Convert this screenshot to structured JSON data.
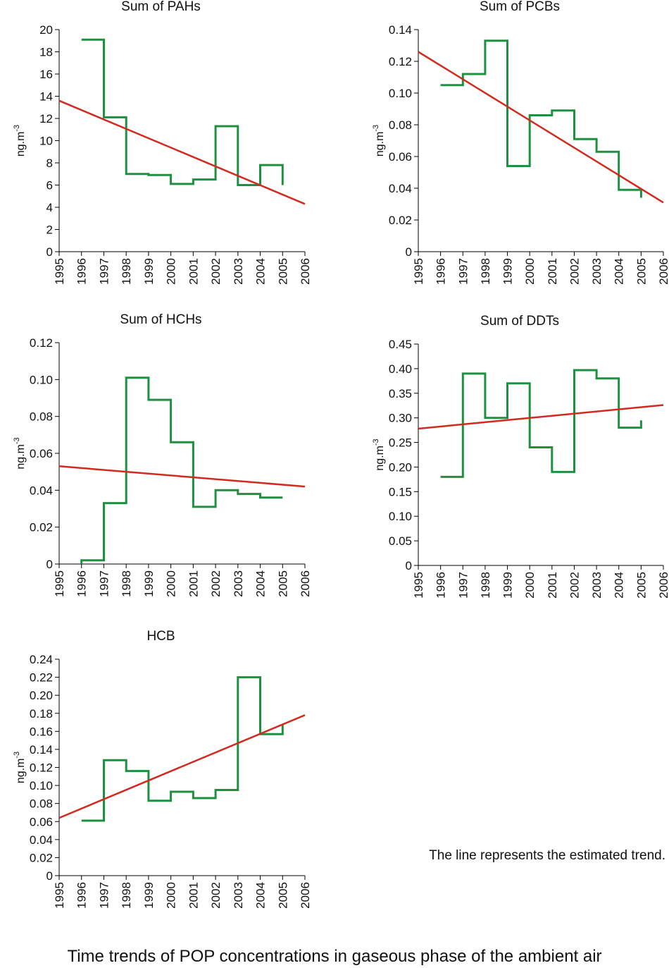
{
  "note": "The line represents the estimated trend.",
  "caption": "Time trends of POP concentrations in gaseous phase of the ambient air",
  "colors": {
    "series": "#1e9140",
    "trend": "#d22a1e",
    "axis": "#000000"
  },
  "chart_data": [
    {
      "type": "line",
      "title": "Sum of PAHs",
      "ylabel": "ng.m",
      "ylabel_sup": "-3",
      "xlim": [
        1995,
        2006
      ],
      "ylim": [
        0,
        20
      ],
      "xticks": [
        "1995",
        "1996",
        "1997",
        "1998",
        "1999",
        "2000",
        "2001",
        "2002",
        "2003",
        "2004",
        "2005",
        "2006"
      ],
      "yticks": [
        "0",
        "2",
        "4",
        "6",
        "8",
        "10",
        "12",
        "14",
        "16",
        "18",
        "20"
      ],
      "series": [
        {
          "role": "annual",
          "style": "step",
          "points": [
            [
              1996,
              19.1
            ],
            [
              1997,
              19.1
            ],
            [
              1997,
              12.1
            ],
            [
              1998,
              12.1
            ],
            [
              1998,
              7.0
            ],
            [
              1999,
              7.0
            ],
            [
              1999,
              6.9
            ],
            [
              2000,
              6.9
            ],
            [
              2000,
              6.1
            ],
            [
              2001,
              6.1
            ],
            [
              2001,
              6.5
            ],
            [
              2002,
              6.5
            ],
            [
              2002,
              11.3
            ],
            [
              2003,
              11.3
            ],
            [
              2003,
              6.0
            ],
            [
              2004,
              6.0
            ],
            [
              2004,
              7.8
            ],
            [
              2005,
              7.8
            ],
            [
              2005,
              6.0
            ]
          ]
        },
        {
          "role": "trend",
          "style": "line",
          "points": [
            [
              1995,
              13.6
            ],
            [
              2006,
              4.3
            ]
          ]
        }
      ]
    },
    {
      "type": "line",
      "title": "Sum of PCBs",
      "ylabel": "ng.m",
      "ylabel_sup": "-3",
      "xlim": [
        1995,
        2006
      ],
      "ylim": [
        0,
        0.14
      ],
      "xticks": [
        "1995",
        "1996",
        "1997",
        "1998",
        "1999",
        "2000",
        "2001",
        "2002",
        "2003",
        "2004",
        "2005",
        "2006"
      ],
      "yticks": [
        "0",
        "0.02",
        "0.04",
        "0.06",
        "0.08",
        "0.10",
        "0.12",
        "0.14"
      ],
      "series": [
        {
          "role": "annual",
          "style": "step",
          "points": [
            [
              1996,
              0.105
            ],
            [
              1997,
              0.105
            ],
            [
              1997,
              0.112
            ],
            [
              1998,
              0.112
            ],
            [
              1998,
              0.133
            ],
            [
              1999,
              0.133
            ],
            [
              1999,
              0.054
            ],
            [
              2000,
              0.054
            ],
            [
              2000,
              0.086
            ],
            [
              2001,
              0.086
            ],
            [
              2001,
              0.089
            ],
            [
              2002,
              0.089
            ],
            [
              2002,
              0.071
            ],
            [
              2003,
              0.071
            ],
            [
              2003,
              0.063
            ],
            [
              2004,
              0.063
            ],
            [
              2004,
              0.039
            ],
            [
              2005,
              0.039
            ],
            [
              2005,
              0.034
            ]
          ]
        },
        {
          "role": "trend",
          "style": "line",
          "points": [
            [
              1995,
              0.126
            ],
            [
              2006,
              0.031
            ]
          ]
        }
      ]
    },
    {
      "type": "line",
      "title": "Sum of HCHs",
      "ylabel": "ng.m",
      "ylabel_sup": "-3",
      "xlim": [
        1995,
        2006
      ],
      "ylim": [
        0,
        0.12
      ],
      "xticks": [
        "1995",
        "1996",
        "1997",
        "1998",
        "1999",
        "2000",
        "2001",
        "2002",
        "2003",
        "2004",
        "2005",
        "2006"
      ],
      "yticks": [
        "0",
        "0.02",
        "0.04",
        "0.06",
        "0.08",
        "0.10",
        "0.12"
      ],
      "series": [
        {
          "role": "annual",
          "style": "step",
          "points": [
            [
              1996,
              0.0
            ],
            [
              1996,
              0.002
            ],
            [
              1997,
              0.002
            ],
            [
              1997,
              0.033
            ],
            [
              1998,
              0.033
            ],
            [
              1998,
              0.101
            ],
            [
              1999,
              0.101
            ],
            [
              1999,
              0.089
            ],
            [
              2000,
              0.089
            ],
            [
              2000,
              0.066
            ],
            [
              2001,
              0.066
            ],
            [
              2001,
              0.031
            ],
            [
              2002,
              0.031
            ],
            [
              2002,
              0.04
            ],
            [
              2003,
              0.04
            ],
            [
              2003,
              0.038
            ],
            [
              2004,
              0.038
            ],
            [
              2004,
              0.036
            ],
            [
              2005,
              0.036
            ]
          ]
        },
        {
          "role": "trend",
          "style": "line",
          "points": [
            [
              1995,
              0.053
            ],
            [
              2006,
              0.042
            ]
          ]
        }
      ]
    },
    {
      "type": "line",
      "title": "Sum of DDTs",
      "ylabel": "ng.m",
      "ylabel_sup": "-3",
      "xlim": [
        1995,
        2006
      ],
      "ylim": [
        0,
        0.45
      ],
      "xticks": [
        "1995",
        "1996",
        "1997",
        "1998",
        "1999",
        "2000",
        "2001",
        "2002",
        "2003",
        "2004",
        "2005",
        "2006"
      ],
      "yticks": [
        "0",
        "0.05",
        "0.10",
        "0.15",
        "0.20",
        "0.25",
        "0.30",
        "0.35",
        "0.40",
        "0.45"
      ],
      "series": [
        {
          "role": "annual",
          "style": "step",
          "points": [
            [
              1996,
              0.18
            ],
            [
              1997,
              0.18
            ],
            [
              1997,
              0.39
            ],
            [
              1998,
              0.39
            ],
            [
              1998,
              0.3
            ],
            [
              1999,
              0.3
            ],
            [
              1999,
              0.37
            ],
            [
              2000,
              0.37
            ],
            [
              2000,
              0.24
            ],
            [
              2001,
              0.24
            ],
            [
              2001,
              0.19
            ],
            [
              2002,
              0.19
            ],
            [
              2002,
              0.397
            ],
            [
              2003,
              0.397
            ],
            [
              2003,
              0.38
            ],
            [
              2004,
              0.38
            ],
            [
              2004,
              0.28
            ],
            [
              2005,
              0.28
            ],
            [
              2005,
              0.295
            ]
          ]
        },
        {
          "role": "trend",
          "style": "line",
          "points": [
            [
              1995,
              0.278
            ],
            [
              2006,
              0.326
            ]
          ]
        }
      ]
    },
    {
      "type": "line",
      "title": "HCB",
      "ylabel": "ng.m",
      "ylabel_sup": "-3",
      "xlim": [
        1995,
        2006
      ],
      "ylim": [
        0,
        0.24
      ],
      "xticks": [
        "1995",
        "1996",
        "1997",
        "1998",
        "1999",
        "2000",
        "2001",
        "2002",
        "2003",
        "2004",
        "2005",
        "2006"
      ],
      "yticks": [
        "0",
        "0.02",
        "0.04",
        "0.06",
        "0.08",
        "0.10",
        "0.12",
        "0.14",
        "0.16",
        "0.18",
        "0.20",
        "0.22",
        "0.24"
      ],
      "series": [
        {
          "role": "annual",
          "style": "step",
          "points": [
            [
              1996,
              0.061
            ],
            [
              1997,
              0.061
            ],
            [
              1997,
              0.128
            ],
            [
              1998,
              0.128
            ],
            [
              1998,
              0.116
            ],
            [
              1999,
              0.116
            ],
            [
              1999,
              0.083
            ],
            [
              2000,
              0.083
            ],
            [
              2000,
              0.093
            ],
            [
              2001,
              0.093
            ],
            [
              2001,
              0.086
            ],
            [
              2002,
              0.086
            ],
            [
              2002,
              0.095
            ],
            [
              2003,
              0.095
            ],
            [
              2003,
              0.22
            ],
            [
              2004,
              0.22
            ],
            [
              2004,
              0.157
            ],
            [
              2005,
              0.157
            ],
            [
              2005,
              0.167
            ]
          ]
        },
        {
          "role": "trend",
          "style": "line",
          "points": [
            [
              1995,
              0.064
            ],
            [
              2006,
              0.178
            ]
          ]
        }
      ]
    }
  ]
}
